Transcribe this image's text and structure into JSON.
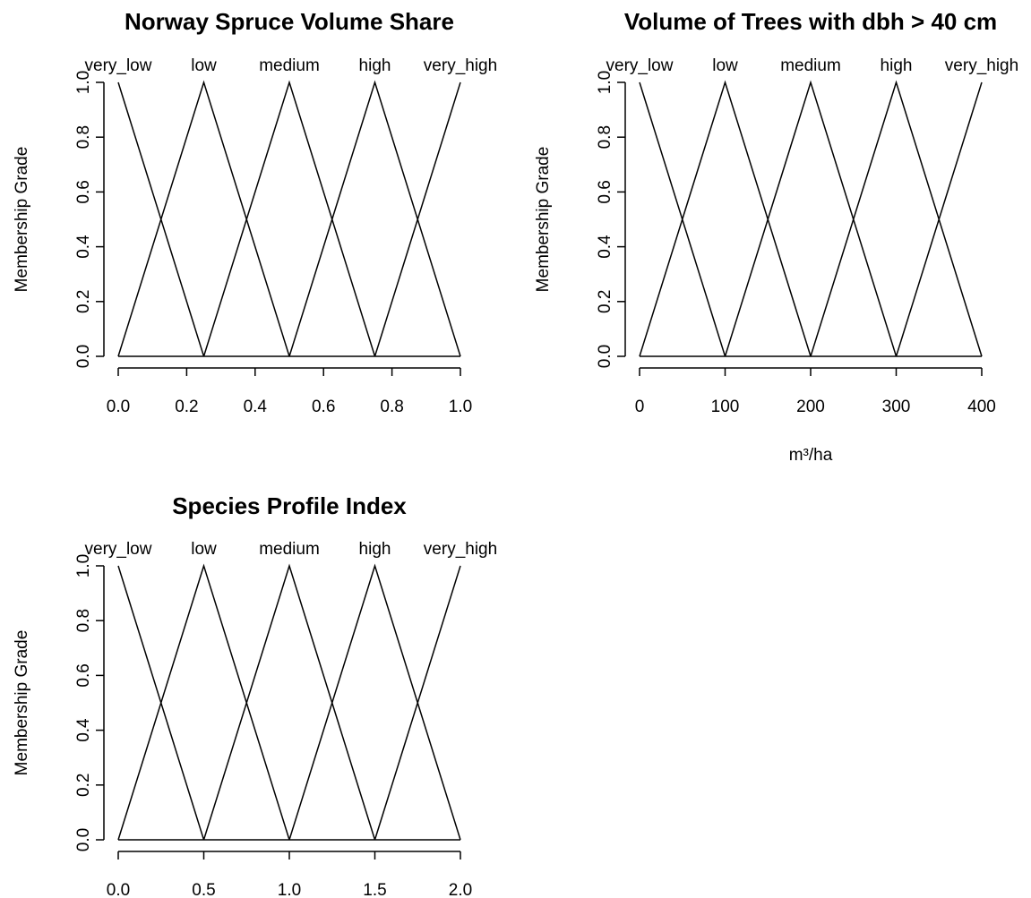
{
  "chart_data": [
    {
      "type": "line",
      "title": "Norway Spruce Volume Share",
      "xlabel": "",
      "ylabel": "Membership Grade",
      "xlim": [
        0,
        1
      ],
      "ylim": [
        0,
        1
      ],
      "xticks": [
        0,
        0.2,
        0.4,
        0.6,
        0.8,
        1
      ],
      "xtick_labels": [
        "0.0",
        "0.2",
        "0.4",
        "0.6",
        "0.8",
        "1.0"
      ],
      "yticks": [
        0,
        0.2,
        0.4,
        0.6,
        0.8,
        1
      ],
      "ytick_labels": [
        "0.0",
        "0.2",
        "0.4",
        "0.6",
        "0.8",
        "1.0"
      ],
      "grid": false,
      "series": [
        {
          "name": "very_low",
          "x": [
            0,
            0.25
          ],
          "y": [
            1,
            0
          ]
        },
        {
          "name": "low",
          "x": [
            0,
            0.25,
            0.5
          ],
          "y": [
            0,
            1,
            0
          ]
        },
        {
          "name": "medium",
          "x": [
            0.25,
            0.5,
            0.75
          ],
          "y": [
            0,
            1,
            0
          ]
        },
        {
          "name": "high",
          "x": [
            0.5,
            0.75,
            1
          ],
          "y": [
            0,
            1,
            0
          ]
        },
        {
          "name": "very_high",
          "x": [
            0.75,
            1
          ],
          "y": [
            0,
            1
          ]
        }
      ],
      "baseline": [
        0,
        1
      ]
    },
    {
      "type": "line",
      "title": "Volume of Trees with dbh > 40 cm",
      "xlabel": "m³/ha",
      "ylabel": "Membership Grade",
      "xlim": [
        0,
        400
      ],
      "ylim": [
        0,
        1
      ],
      "xticks": [
        0,
        100,
        200,
        300,
        400
      ],
      "xtick_labels": [
        "0",
        "100",
        "200",
        "300",
        "400"
      ],
      "yticks": [
        0,
        0.2,
        0.4,
        0.6,
        0.8,
        1
      ],
      "ytick_labels": [
        "0.0",
        "0.2",
        "0.4",
        "0.6",
        "0.8",
        "1.0"
      ],
      "grid": false,
      "series": [
        {
          "name": "very_low",
          "x": [
            0,
            100
          ],
          "y": [
            1,
            0
          ]
        },
        {
          "name": "low",
          "x": [
            0,
            100,
            200
          ],
          "y": [
            0,
            1,
            0
          ]
        },
        {
          "name": "medium",
          "x": [
            100,
            200,
            300
          ],
          "y": [
            0,
            1,
            0
          ]
        },
        {
          "name": "high",
          "x": [
            200,
            300,
            400
          ],
          "y": [
            0,
            1,
            0
          ]
        },
        {
          "name": "very_high",
          "x": [
            300,
            400
          ],
          "y": [
            0,
            1
          ]
        }
      ],
      "baseline": [
        0,
        400
      ]
    },
    {
      "type": "line",
      "title": "Species Profile Index",
      "xlabel": "",
      "ylabel": "Membership Grade",
      "xlim": [
        0,
        2
      ],
      "ylim": [
        0,
        1
      ],
      "xticks": [
        0,
        0.5,
        1,
        1.5,
        2
      ],
      "xtick_labels": [
        "0.0",
        "0.5",
        "1.0",
        "1.5",
        "2.0"
      ],
      "yticks": [
        0,
        0.2,
        0.4,
        0.6,
        0.8,
        1
      ],
      "ytick_labels": [
        "0.0",
        "0.2",
        "0.4",
        "0.6",
        "0.8",
        "1.0"
      ],
      "grid": false,
      "series": [
        {
          "name": "very_low",
          "x": [
            0,
            0.5
          ],
          "y": [
            1,
            0
          ]
        },
        {
          "name": "low",
          "x": [
            0,
            0.5,
            1
          ],
          "y": [
            0,
            1,
            0
          ]
        },
        {
          "name": "medium",
          "x": [
            0.5,
            1,
            1.5
          ],
          "y": [
            0,
            1,
            0
          ]
        },
        {
          "name": "high",
          "x": [
            1,
            1.5,
            2
          ],
          "y": [
            0,
            1,
            0
          ]
        },
        {
          "name": "very_high",
          "x": [
            1.5,
            2
          ],
          "y": [
            0,
            1
          ]
        }
      ],
      "baseline": [
        0,
        2
      ]
    }
  ]
}
